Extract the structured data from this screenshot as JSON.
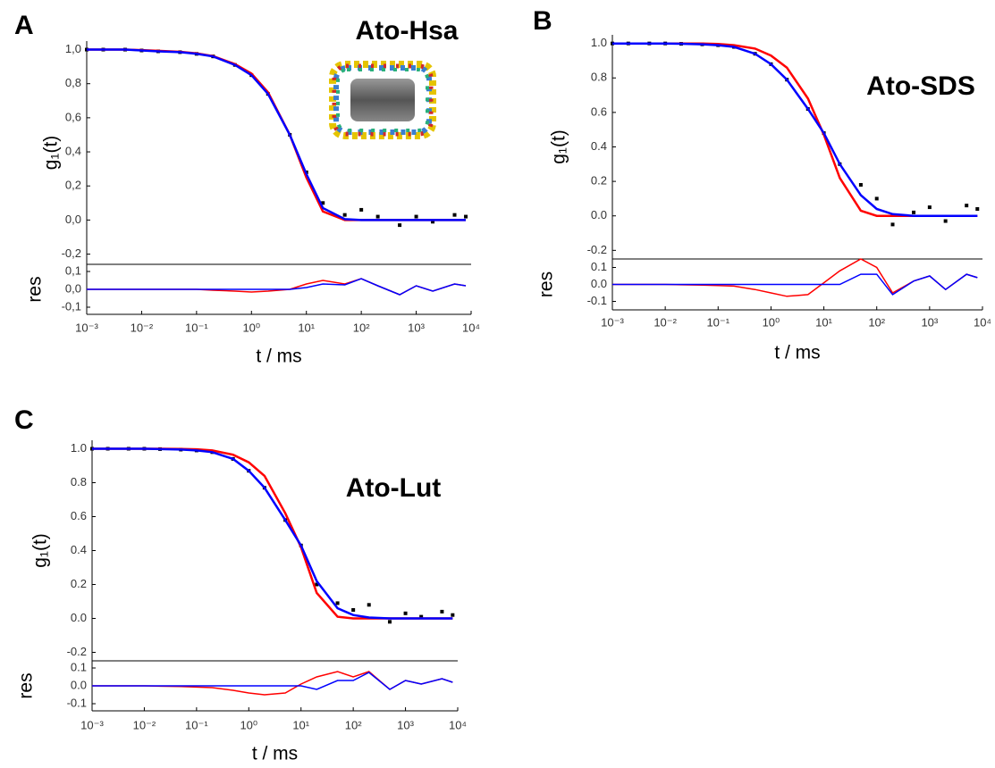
{
  "chart_data": [
    {
      "panel": "A",
      "type": "line",
      "title": "Ato-Hsa",
      "xlabel": "t / ms",
      "ylabel": "g₁(t)",
      "xscale": "log",
      "x": [
        0.001,
        0.002,
        0.005,
        0.01,
        0.02,
        0.05,
        0.1,
        0.2,
        0.5,
        1,
        2,
        5,
        10,
        20,
        50,
        100,
        200,
        500,
        1000,
        2000,
        5000,
        8000
      ],
      "xlim": [
        0.001,
        10000
      ],
      "xticks": [
        {
          "value": 0.001,
          "label": "10⁻³"
        },
        {
          "value": 0.01,
          "label": "10⁻²"
        },
        {
          "value": 0.1,
          "label": "10⁻¹"
        },
        {
          "value": 1,
          "label": "10⁰"
        },
        {
          "value": 10,
          "label": "10¹"
        },
        {
          "value": 100,
          "label": "10²"
        },
        {
          "value": 1000,
          "label": "10³"
        },
        {
          "value": 10000,
          "label": "10⁴"
        }
      ],
      "ylim": [
        -0.26,
        1.05
      ],
      "yticks": [
        {
          "value": -0.2,
          "label": "-0,2"
        },
        {
          "value": 0,
          "label": "0,0"
        },
        {
          "value": 0.2,
          "label": "0,2"
        },
        {
          "value": 0.4,
          "label": "0,4"
        },
        {
          "value": 0.6,
          "label": "0,6"
        },
        {
          "value": 0.8,
          "label": "0,8"
        },
        {
          "value": 1,
          "label": "1,0"
        }
      ],
      "series": [
        {
          "mode": "markers",
          "color": "#000000",
          "values": [
            1,
            1,
            1,
            0.995,
            0.99,
            0.985,
            0.975,
            0.96,
            0.91,
            0.85,
            0.74,
            0.5,
            0.28,
            0.1,
            0.03,
            0.06,
            0.02,
            -0.03,
            0.02,
            -0.01,
            0.03,
            0.02
          ]
        },
        {
          "mode": "lines",
          "color": "#ff0000",
          "values": [
            1,
            1,
            1,
            0.997,
            0.993,
            0.987,
            0.978,
            0.962,
            0.915,
            0.86,
            0.75,
            0.5,
            0.25,
            0.05,
            0,
            0,
            0,
            0,
            0,
            0,
            0,
            0
          ]
        },
        {
          "mode": "lines",
          "color": "#0000ff",
          "values": [
            1,
            1,
            1,
            0.995,
            0.99,
            0.985,
            0.975,
            0.96,
            0.91,
            0.85,
            0.74,
            0.5,
            0.27,
            0.07,
            0.005,
            0,
            0,
            0,
            0,
            0,
            0,
            0
          ]
        }
      ],
      "residuals": {
        "ylabel": "res",
        "ylim": [
          -0.14,
          0.14
        ],
        "yticks": [
          {
            "value": -0.1,
            "label": "-0,1"
          },
          {
            "value": 0,
            "label": "0,0"
          },
          {
            "value": 0.1,
            "label": "0,1"
          }
        ],
        "series": [
          {
            "color": "#ff0000",
            "values": [
              0,
              0,
              0,
              0,
              0,
              0,
              0,
              -0.005,
              -0.01,
              -0.015,
              -0.01,
              0,
              0.03,
              0.05,
              0.03,
              0.06,
              0.02,
              -0.03,
              0.02,
              -0.01,
              0.03,
              0.02
            ]
          },
          {
            "color": "#0000ff",
            "values": [
              0,
              0,
              0,
              0,
              0,
              0,
              0,
              0,
              0,
              0,
              0,
              0,
              0.01,
              0.03,
              0.025,
              0.06,
              0.02,
              -0.03,
              0.02,
              -0.01,
              0.03,
              0.02
            ]
          }
        ]
      }
    },
    {
      "panel": "B",
      "type": "line",
      "title": "Ato-SDS",
      "xlabel": "t / ms",
      "ylabel": "g₁(t)",
      "xscale": "log",
      "x": [
        0.001,
        0.002,
        0.005,
        0.01,
        0.02,
        0.05,
        0.1,
        0.2,
        0.5,
        1,
        2,
        5,
        10,
        20,
        50,
        100,
        200,
        500,
        1000,
        2000,
        5000,
        8000
      ],
      "xlim": [
        0.001,
        10000
      ],
      "xticks": [
        {
          "value": 0.001,
          "label": "10⁻³"
        },
        {
          "value": 0.01,
          "label": "10⁻²"
        },
        {
          "value": 0.1,
          "label": "10⁻¹"
        },
        {
          "value": 1,
          "label": "10⁰"
        },
        {
          "value": 10,
          "label": "10¹"
        },
        {
          "value": 100,
          "label": "10²"
        },
        {
          "value": 1000,
          "label": "10³"
        },
        {
          "value": 10000,
          "label": "10⁴"
        }
      ],
      "ylim": [
        -0.25,
        1.05
      ],
      "yticks": [
        -0.2,
        {
          "value": 0,
          "label": "0.0"
        },
        0.2,
        0.4,
        0.6,
        0.8,
        {
          "value": 1,
          "label": "1.0"
        }
      ],
      "series": [
        {
          "mode": "markers",
          "color": "#000000",
          "values": [
            1,
            1,
            1,
            1,
            0.998,
            0.995,
            0.99,
            0.98,
            0.94,
            0.88,
            0.79,
            0.62,
            0.48,
            0.3,
            0.18,
            0.1,
            -0.05,
            0.02,
            0.05,
            -0.03,
            0.06,
            0.04
          ]
        },
        {
          "mode": "lines",
          "color": "#ff0000",
          "values": [
            1,
            1,
            1,
            1,
            1,
            0.999,
            0.997,
            0.99,
            0.97,
            0.93,
            0.86,
            0.68,
            0.47,
            0.22,
            0.03,
            0,
            0,
            0,
            0,
            0,
            0,
            0
          ]
        },
        {
          "mode": "lines",
          "color": "#0000ff",
          "values": [
            1,
            1,
            1,
            1,
            0.998,
            0.995,
            0.99,
            0.98,
            0.94,
            0.88,
            0.79,
            0.62,
            0.48,
            0.3,
            0.12,
            0.04,
            0.01,
            0,
            0,
            0,
            0,
            0
          ]
        }
      ],
      "residuals": {
        "ylabel": "res",
        "ylim": [
          -0.15,
          0.15
        ],
        "yticks": [
          -0.1,
          {
            "value": 0,
            "label": "0.0"
          },
          0.1
        ],
        "series": [
          {
            "color": "#ff0000",
            "values": [
              0,
              0,
              0,
              0,
              -0.002,
              -0.004,
              -0.007,
              -0.01,
              -0.03,
              -0.05,
              -0.07,
              -0.06,
              0.01,
              0.08,
              0.15,
              0.1,
              -0.05,
              0.02,
              0.05,
              -0.03,
              0.06,
              0.04
            ]
          },
          {
            "color": "#0000ff",
            "values": [
              0,
              0,
              0,
              0,
              0,
              0,
              0,
              0,
              0,
              0,
              0,
              0,
              0,
              0,
              0.06,
              0.06,
              -0.06,
              0.02,
              0.05,
              -0.03,
              0.06,
              0.04
            ]
          }
        ]
      }
    },
    {
      "panel": "C",
      "type": "line",
      "title": "Ato-Lut",
      "xlabel": "t / ms",
      "ylabel": "g₁(t)",
      "xscale": "log",
      "x": [
        0.001,
        0.002,
        0.005,
        0.01,
        0.02,
        0.05,
        0.1,
        0.2,
        0.5,
        1,
        2,
        5,
        10,
        20,
        50,
        100,
        200,
        500,
        1000,
        2000,
        5000,
        8000
      ],
      "xlim": [
        0.001,
        10000
      ],
      "xticks": [
        {
          "value": 0.001,
          "label": "10⁻³"
        },
        {
          "value": 0.01,
          "label": "10⁻²"
        },
        {
          "value": 0.1,
          "label": "10⁻¹"
        },
        {
          "value": 1,
          "label": "10⁰"
        },
        {
          "value": 10,
          "label": "10¹"
        },
        {
          "value": 100,
          "label": "10²"
        },
        {
          "value": 1000,
          "label": "10³"
        },
        {
          "value": 10000,
          "label": "10⁴"
        }
      ],
      "ylim": [
        -0.25,
        1.05
      ],
      "yticks": [
        -0.2,
        {
          "value": 0,
          "label": "0.0"
        },
        0.2,
        0.4,
        0.6,
        0.8,
        {
          "value": 1,
          "label": "1.0"
        }
      ],
      "series": [
        {
          "mode": "markers",
          "color": "#000000",
          "values": [
            1,
            1,
            1,
            1,
            0.998,
            0.995,
            0.99,
            0.98,
            0.94,
            0.87,
            0.77,
            0.58,
            0.43,
            0.2,
            0.09,
            0.05,
            0.08,
            -0.02,
            0.03,
            0.01,
            0.04,
            0.02
          ]
        },
        {
          "mode": "lines",
          "color": "#ff0000",
          "values": [
            1,
            1,
            1,
            1,
            1,
            0.999,
            0.997,
            0.99,
            0.965,
            0.92,
            0.84,
            0.62,
            0.42,
            0.15,
            0.01,
            0,
            0,
            0,
            0,
            0,
            0,
            0
          ]
        },
        {
          "mode": "lines",
          "color": "#0000ff",
          "values": [
            1,
            1,
            1,
            1,
            0.998,
            0.995,
            0.99,
            0.98,
            0.94,
            0.87,
            0.77,
            0.58,
            0.43,
            0.22,
            0.06,
            0.02,
            0.005,
            0,
            0,
            0,
            0,
            0
          ]
        }
      ],
      "residuals": {
        "ylabel": "res",
        "ylim": [
          -0.14,
          0.14
        ],
        "yticks": [
          -0.1,
          {
            "value": 0,
            "label": "0.0"
          },
          0.1
        ],
        "series": [
          {
            "color": "#ff0000",
            "values": [
              0,
              0,
              0,
              0,
              -0.002,
              -0.004,
              -0.007,
              -0.01,
              -0.025,
              -0.04,
              -0.05,
              -0.04,
              0.01,
              0.05,
              0.08,
              0.05,
              0.08,
              -0.02,
              0.03,
              0.01,
              0.04,
              0.02
            ]
          },
          {
            "color": "#0000ff",
            "values": [
              0,
              0,
              0,
              0,
              0,
              0,
              0,
              0,
              0,
              0,
              0,
              0,
              0,
              -0.02,
              0.03,
              0.03,
              0.075,
              -0.02,
              0.03,
              0.01,
              0.04,
              0.02
            ]
          }
        ]
      }
    }
  ]
}
